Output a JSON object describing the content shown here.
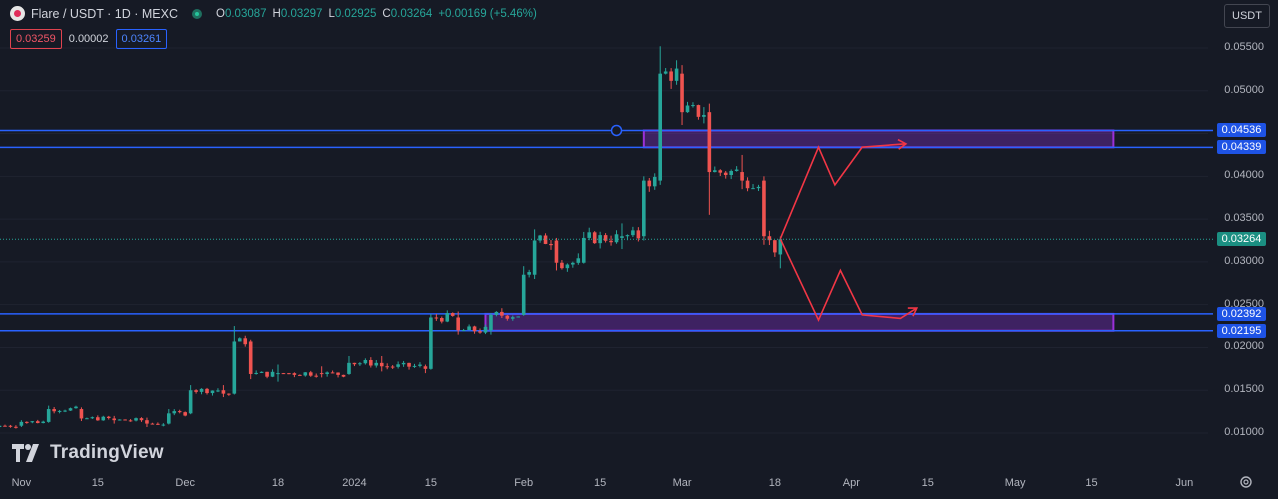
{
  "header": {
    "symbol": "Flare / USDT · 1D · MEXC",
    "ohlc": [
      {
        "key": "O",
        "value": "0.03087"
      },
      {
        "key": "H",
        "value": "0.03297"
      },
      {
        "key": "L",
        "value": "0.02925"
      },
      {
        "key": "C",
        "value": "0.03264"
      }
    ],
    "change": "+0.00169 (+5.46%)"
  },
  "prices": {
    "sell": "0.03259",
    "spread": "0.00002",
    "buy": "0.03261"
  },
  "currency": "USDT",
  "watermark": "TradingView",
  "colors": {
    "up": "#26A69A",
    "down": "#EF5350",
    "line": "#2962FF",
    "zone": "#7B2FBE",
    "arrow": "#F23645"
  },
  "y_labels": [
    "0.05500",
    "0.05000",
    "0.04500",
    "0.04000",
    "0.03500",
    "0.03000",
    "0.02500",
    "0.02000",
    "0.01500",
    "0.01000"
  ],
  "x_labels": [
    "Nov",
    "15",
    "Dec",
    "18",
    "2024",
    "15",
    "Feb",
    "15",
    "Mar",
    "18",
    "Apr",
    "15",
    "May",
    "15",
    "Jun"
  ],
  "price_tags": [
    {
      "value": "0.04536",
      "kind": "line"
    },
    {
      "value": "0.04339",
      "kind": "line"
    },
    {
      "value": "0.03264",
      "kind": "last"
    },
    {
      "value": "0.02392",
      "kind": "line"
    },
    {
      "value": "0.02195",
      "kind": "line"
    }
  ],
  "chart_data": {
    "type": "candlestick",
    "symbol": "Flare / USDT",
    "interval": "1D",
    "exchange": "MEXC",
    "last_price": 0.03264,
    "horizontal_levels": [
      0.04536,
      0.04339,
      0.02392,
      0.02195
    ],
    "zones": [
      {
        "top": 0.04536,
        "bottom": 0.04339,
        "from": "2024-02-23",
        "to": "2024-05-19"
      },
      {
        "top": 0.02392,
        "bottom": 0.02195,
        "from": "2024-01-25",
        "to": "2024-05-19"
      }
    ],
    "projection_up": [
      {
        "date": "2024-03-19",
        "price": 0.0327
      },
      {
        "date": "2024-03-26",
        "price": 0.0434
      },
      {
        "date": "2024-03-29",
        "price": 0.039
      },
      {
        "date": "2024-04-03",
        "price": 0.0434
      },
      {
        "date": "2024-04-11",
        "price": 0.0438
      }
    ],
    "projection_down": [
      {
        "date": "2024-03-19",
        "price": 0.0327
      },
      {
        "date": "2024-03-26",
        "price": 0.0232
      },
      {
        "date": "2024-03-30",
        "price": 0.029
      },
      {
        "date": "2024-04-03",
        "price": 0.0238
      },
      {
        "date": "2024-04-10",
        "price": 0.0234
      },
      {
        "date": "2024-04-13",
        "price": 0.0246
      }
    ],
    "candles": [
      [
        "2023-10-28",
        0.0107,
        0.011,
        0.0105,
        0.01085
      ],
      [
        "2023-11-01",
        0.01085,
        0.0115,
        0.0107,
        0.0113
      ],
      [
        "2023-11-06",
        0.0113,
        0.0132,
        0.0112,
        0.0128
      ],
      [
        "2023-11-12",
        0.0128,
        0.013,
        0.0114,
        0.0117
      ],
      [
        "2023-11-18",
        0.0117,
        0.012,
        0.0111,
        0.0115
      ],
      [
        "2023-11-24",
        0.0115,
        0.0118,
        0.0107,
        0.0111
      ],
      [
        "2023-11-28",
        0.0111,
        0.0128,
        0.011,
        0.0123
      ],
      [
        "2023-12-02",
        0.0123,
        0.0156,
        0.0122,
        0.015
      ],
      [
        "2023-12-08",
        0.015,
        0.0156,
        0.0142,
        0.0146
      ],
      [
        "2023-12-10",
        0.0146,
        0.0225,
        0.0145,
        0.0207
      ],
      [
        "2023-12-13",
        0.0207,
        0.0209,
        0.0163,
        0.0169
      ],
      [
        "2023-12-18",
        0.0169,
        0.018,
        0.016,
        0.017
      ],
      [
        "2023-12-26",
        0.017,
        0.0178,
        0.0165,
        0.0169
      ],
      [
        "2023-12-31",
        0.0169,
        0.019,
        0.0168,
        0.0182
      ],
      [
        "2024-01-06",
        0.0182,
        0.019,
        0.0172,
        0.0178
      ],
      [
        "2024-01-14",
        0.0178,
        0.018,
        0.017,
        0.0175
      ],
      [
        "2024-01-15",
        0.0175,
        0.0239,
        0.0174,
        0.0235
      ],
      [
        "2024-01-20",
        0.0235,
        0.0242,
        0.0215,
        0.022
      ],
      [
        "2024-01-26",
        0.022,
        0.024,
        0.0215,
        0.0238
      ],
      [
        "2024-02-01",
        0.0238,
        0.0295,
        0.0237,
        0.0285
      ],
      [
        "2024-02-03",
        0.0285,
        0.0338,
        0.028,
        0.0325
      ],
      [
        "2024-02-07",
        0.0325,
        0.0328,
        0.029,
        0.0299
      ],
      [
        "2024-02-12",
        0.0299,
        0.0335,
        0.0298,
        0.0328
      ],
      [
        "2024-02-19",
        0.0328,
        0.0345,
        0.0315,
        0.033
      ],
      [
        "2024-02-23",
        0.033,
        0.04,
        0.0325,
        0.0395
      ],
      [
        "2024-02-26",
        0.0395,
        0.0552,
        0.039,
        0.052
      ],
      [
        "2024-03-01",
        0.052,
        0.053,
        0.046,
        0.0475
      ],
      [
        "2024-03-06",
        0.0475,
        0.0485,
        0.0355,
        0.0405
      ],
      [
        "2024-03-12",
        0.0405,
        0.0425,
        0.0385,
        0.0395
      ],
      [
        "2024-03-16",
        0.0395,
        0.04,
        0.032,
        0.033
      ],
      [
        "2024-03-19",
        0.03087,
        0.03297,
        0.02925,
        0.03264
      ]
    ]
  }
}
